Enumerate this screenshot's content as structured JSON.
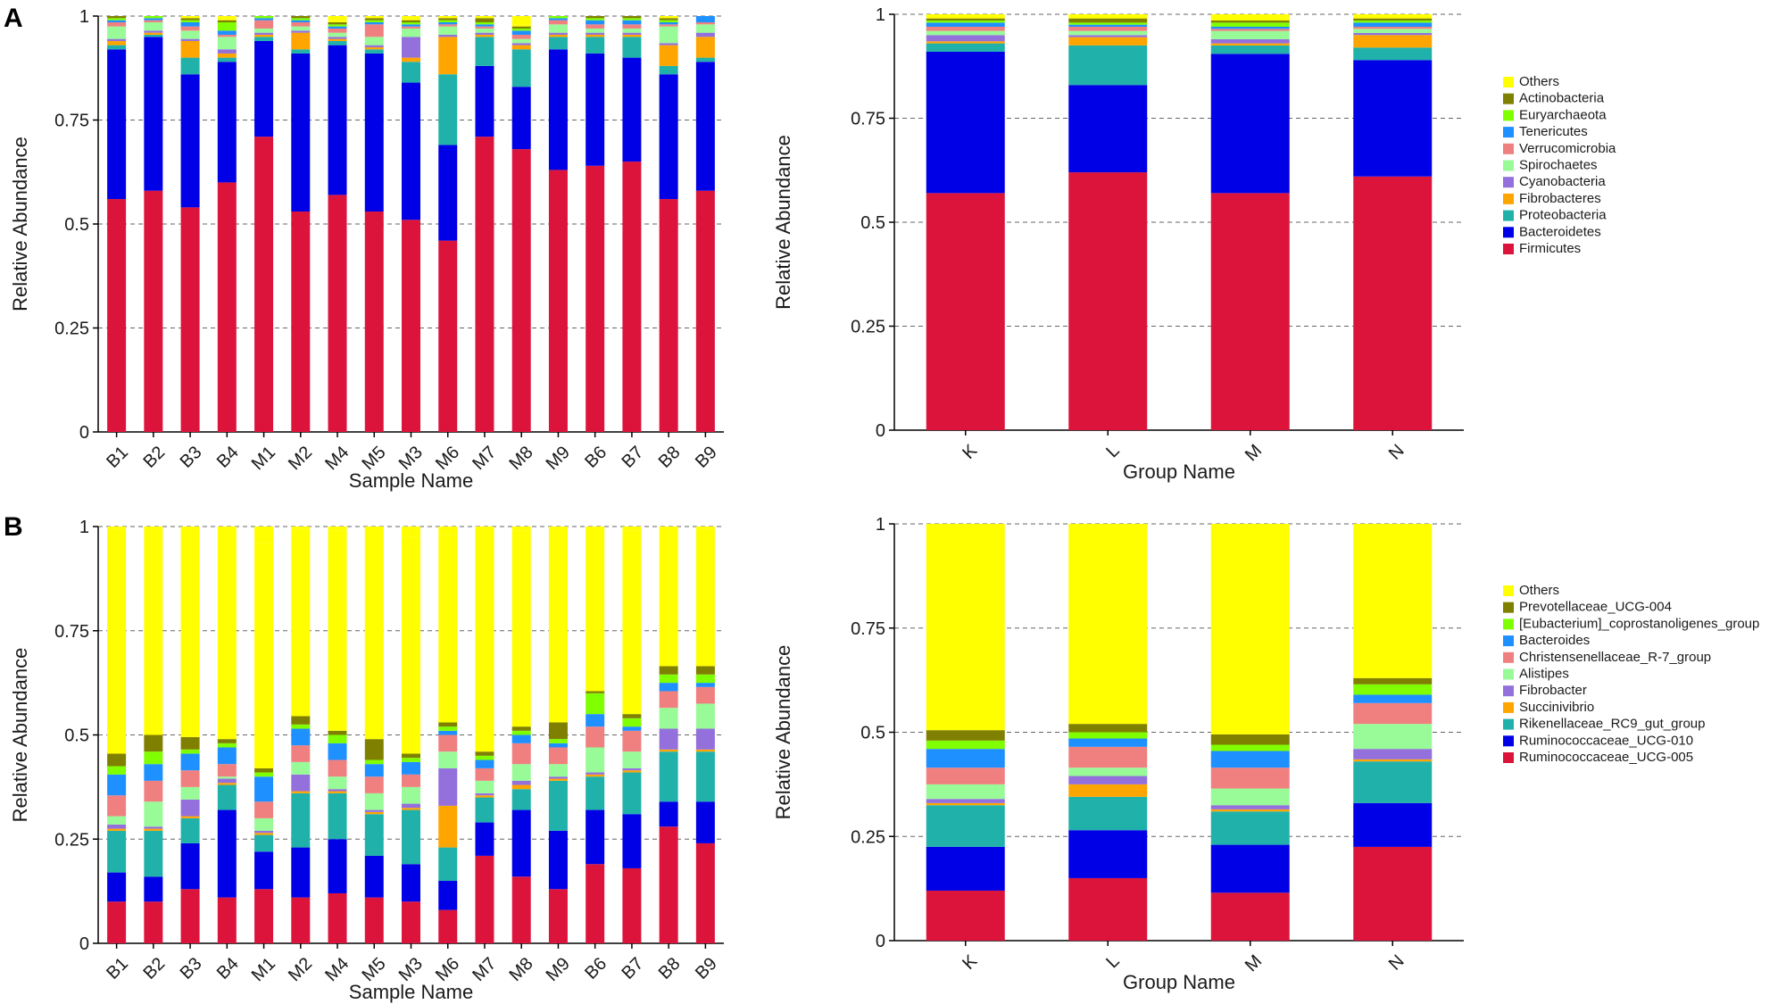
{
  "figure": {
    "panel_labels": [
      "A",
      "B"
    ],
    "ytick_labels": [
      "0",
      "0.25",
      "0.5",
      "0.75",
      "1"
    ]
  },
  "chart_data": [
    {
      "id": "A-samples",
      "type": "bar",
      "stacked": true,
      "title": "",
      "xlabel": "Sample Name",
      "ylabel": "Relative Abundance",
      "ylim": [
        0,
        1
      ],
      "yticks": [
        0,
        0.25,
        0.5,
        0.75,
        1
      ],
      "grid": "dashed horizontal",
      "categories": [
        "B1",
        "B2",
        "B3",
        "B4",
        "M1",
        "M2",
        "M4",
        "M5",
        "M3",
        "M6",
        "M7",
        "M8",
        "M9",
        "B6",
        "B7",
        "B8",
        "B9"
      ],
      "series": [
        {
          "name": "Firmicutes",
          "color": "#dc143c",
          "values": [
            0.56,
            0.58,
            0.54,
            0.6,
            0.71,
            0.53,
            0.57,
            0.53,
            0.51,
            0.46,
            0.71,
            0.68,
            0.63,
            0.64,
            0.65,
            0.56,
            0.58
          ]
        },
        {
          "name": "Bacteroidetes",
          "color": "#0000e6",
          "values": [
            0.36,
            0.37,
            0.32,
            0.29,
            0.23,
            0.38,
            0.36,
            0.38,
            0.33,
            0.23,
            0.17,
            0.15,
            0.29,
            0.27,
            0.25,
            0.3,
            0.31
          ]
        },
        {
          "name": "Proteobacteria",
          "color": "#20b2aa",
          "values": [
            0.01,
            0.005,
            0.04,
            0.01,
            0.01,
            0.01,
            0.01,
            0.01,
            0.05,
            0.17,
            0.07,
            0.09,
            0.03,
            0.04,
            0.05,
            0.02,
            0.01
          ]
        },
        {
          "name": "Fibrobacteres",
          "color": "#ffa500",
          "values": [
            0.01,
            0.005,
            0.04,
            0.01,
            0.005,
            0.04,
            0.005,
            0.005,
            0.01,
            0.09,
            0.005,
            0.01,
            0.005,
            0.005,
            0.005,
            0.05,
            0.05
          ]
        },
        {
          "name": "Cyanobacteria",
          "color": "#9370db",
          "values": [
            0.005,
            0.005,
            0.005,
            0.01,
            0.005,
            0.005,
            0.005,
            0.005,
            0.05,
            0.005,
            0.005,
            0.005,
            0.005,
            0.005,
            0.005,
            0.005,
            0.01
          ]
        },
        {
          "name": "Spirochaetes",
          "color": "#98fb98",
          "values": [
            0.03,
            0.02,
            0.02,
            0.03,
            0.01,
            0.01,
            0.01,
            0.02,
            0.02,
            0.02,
            0.01,
            0.01,
            0.02,
            0.01,
            0.01,
            0.04,
            0.02
          ]
        },
        {
          "name": "Verrucomicrobia",
          "color": "#f08080",
          "values": [
            0.01,
            0.005,
            0.01,
            0.005,
            0.02,
            0.01,
            0.01,
            0.03,
            0.005,
            0.005,
            0.005,
            0.01,
            0.01,
            0.01,
            0.01,
            0.005,
            0.005
          ]
        },
        {
          "name": "Tenericutes",
          "color": "#1e90ff",
          "values": [
            0.005,
            0.005,
            0.01,
            0.01,
            0.005,
            0.005,
            0.005,
            0.005,
            0.005,
            0.005,
            0.005,
            0.01,
            0.005,
            0.01,
            0.01,
            0.005,
            0.02
          ]
        },
        {
          "name": "Euryarchaeota",
          "color": "#7fff00",
          "values": [
            0.005,
            0.005,
            0.005,
            0.02,
            0.005,
            0.005,
            0.005,
            0.005,
            0.005,
            0.005,
            0.005,
            0.005,
            0.005,
            0.005,
            0.005,
            0.005,
            0.005
          ]
        },
        {
          "name": "Actinobacteria",
          "color": "#808000",
          "values": [
            0.005,
            0.005,
            0.005,
            0.005,
            0.005,
            0.005,
            0.005,
            0.005,
            0.005,
            0.005,
            0.01,
            0.005,
            0.005,
            0.005,
            0.005,
            0.005,
            0.005
          ]
        },
        {
          "name": "Others",
          "color": "#ffff00",
          "values": [
            0.005,
            0.005,
            0.005,
            0.005,
            0.005,
            0.005,
            0.005,
            0.005,
            0.005,
            0.005,
            0.005,
            0.005,
            0.005,
            0.005,
            0.005,
            0.005,
            0.005
          ]
        }
      ]
    },
    {
      "id": "A-groups",
      "type": "bar",
      "stacked": true,
      "title": "",
      "xlabel": "Group Name",
      "ylabel": "Relative Abundance",
      "ylim": [
        0,
        1
      ],
      "yticks": [
        0,
        0.25,
        0.5,
        0.75,
        1
      ],
      "grid": "dashed horizontal",
      "legend": "right",
      "categories": [
        "K",
        "L",
        "M",
        "N"
      ],
      "series": [
        {
          "name": "Firmicutes",
          "color": "#dc143c",
          "values": [
            0.57,
            0.62,
            0.57,
            0.61
          ]
        },
        {
          "name": "Bacteroidetes",
          "color": "#0000e6",
          "values": [
            0.34,
            0.21,
            0.335,
            0.28
          ]
        },
        {
          "name": "Proteobacteria",
          "color": "#20b2aa",
          "values": [
            0.02,
            0.095,
            0.02,
            0.03
          ]
        },
        {
          "name": "Fibrobacteres",
          "color": "#ffa500",
          "values": [
            0.005,
            0.02,
            0.005,
            0.03
          ]
        },
        {
          "name": "Cyanobacteria",
          "color": "#9370db",
          "values": [
            0.015,
            0.005,
            0.01,
            0.005
          ]
        },
        {
          "name": "Spirochaetes",
          "color": "#98fb98",
          "values": [
            0.01,
            0.01,
            0.02,
            0.01
          ]
        },
        {
          "name": "Verrucomicrobia",
          "color": "#f08080",
          "values": [
            0.01,
            0.01,
            0.005,
            0.005
          ]
        },
        {
          "name": "Tenericutes",
          "color": "#1e90ff",
          "values": [
            0.01,
            0.005,
            0.005,
            0.01
          ]
        },
        {
          "name": "Euryarchaeota",
          "color": "#7fff00",
          "values": [
            0.005,
            0.005,
            0.01,
            0.005
          ]
        },
        {
          "name": "Actinobacteria",
          "color": "#808000",
          "values": [
            0.005,
            0.01,
            0.005,
            0.005
          ]
        },
        {
          "name": "Others",
          "color": "#ffff00",
          "values": [
            0.01,
            0.01,
            0.015,
            0.01
          ]
        }
      ]
    },
    {
      "id": "B-samples",
      "type": "bar",
      "stacked": true,
      "title": "",
      "xlabel": "Sample Name",
      "ylabel": "Relative Abundance",
      "ylim": [
        0,
        1
      ],
      "yticks": [
        0,
        0.25,
        0.5,
        0.75,
        1
      ],
      "grid": "dashed horizontal",
      "categories": [
        "B1",
        "B2",
        "B3",
        "B4",
        "M1",
        "M2",
        "M4",
        "M5",
        "M3",
        "M6",
        "M7",
        "M8",
        "M9",
        "B6",
        "B7",
        "B8",
        "B9"
      ],
      "series": [
        {
          "name": "Ruminococcaceae_UCG-005",
          "color": "#dc143c",
          "values": [
            0.1,
            0.1,
            0.13,
            0.11,
            0.13,
            0.11,
            0.12,
            0.11,
            0.1,
            0.08,
            0.21,
            0.16,
            0.13,
            0.19,
            0.18,
            0.28,
            0.24
          ]
        },
        {
          "name": "Ruminococcaceae_UCG-010",
          "color": "#0000e6",
          "values": [
            0.07,
            0.06,
            0.11,
            0.21,
            0.09,
            0.12,
            0.13,
            0.1,
            0.09,
            0.07,
            0.08,
            0.16,
            0.14,
            0.13,
            0.13,
            0.06,
            0.1
          ]
        },
        {
          "name": "Rikenellaceae_RC9_gut_group",
          "color": "#20b2aa",
          "values": [
            0.1,
            0.11,
            0.06,
            0.06,
            0.04,
            0.13,
            0.11,
            0.1,
            0.13,
            0.08,
            0.06,
            0.05,
            0.12,
            0.08,
            0.1,
            0.12,
            0.12
          ]
        },
        {
          "name": "Succinivibrio",
          "color": "#ffa500",
          "values": [
            0.005,
            0.005,
            0.005,
            0.005,
            0.005,
            0.005,
            0.005,
            0.005,
            0.005,
            0.1,
            0.005,
            0.01,
            0.005,
            0.005,
            0.005,
            0.005,
            0.005
          ]
        },
        {
          "name": "Fibrobacter",
          "color": "#9370db",
          "values": [
            0.01,
            0.005,
            0.04,
            0.01,
            0.005,
            0.04,
            0.005,
            0.005,
            0.01,
            0.09,
            0.005,
            0.01,
            0.005,
            0.005,
            0.005,
            0.05,
            0.05
          ]
        },
        {
          "name": "Alistipes",
          "color": "#98fb98",
          "values": [
            0.02,
            0.06,
            0.03,
            0.005,
            0.03,
            0.03,
            0.03,
            0.04,
            0.04,
            0.04,
            0.03,
            0.04,
            0.03,
            0.06,
            0.04,
            0.05,
            0.06
          ]
        },
        {
          "name": "Christensenellaceae_R-7_group",
          "color": "#f08080",
          "values": [
            0.05,
            0.05,
            0.04,
            0.03,
            0.04,
            0.04,
            0.04,
            0.04,
            0.03,
            0.04,
            0.03,
            0.05,
            0.04,
            0.05,
            0.05,
            0.04,
            0.04
          ]
        },
        {
          "name": "Bacteroides",
          "color": "#1e90ff",
          "values": [
            0.05,
            0.04,
            0.04,
            0.04,
            0.06,
            0.04,
            0.04,
            0.03,
            0.03,
            0.01,
            0.02,
            0.02,
            0.01,
            0.03,
            0.01,
            0.02,
            0.01
          ]
        },
        {
          "name": "[Eubacterium]_coprostanoligenes_group",
          "color": "#7fff00",
          "values": [
            0.02,
            0.03,
            0.01,
            0.01,
            0.01,
            0.01,
            0.02,
            0.01,
            0.01,
            0.01,
            0.01,
            0.01,
            0.01,
            0.05,
            0.02,
            0.02,
            0.02
          ]
        },
        {
          "name": "Prevotellaceae_UCG-004",
          "color": "#808000",
          "values": [
            0.03,
            0.04,
            0.03,
            0.01,
            0.01,
            0.02,
            0.01,
            0.05,
            0.01,
            0.01,
            0.01,
            0.01,
            0.04,
            0.005,
            0.01,
            0.02,
            0.02
          ]
        },
        {
          "name": "Others",
          "color": "#ffff00",
          "values": [
            0.54,
            0.5,
            0.51,
            0.48,
            0.54,
            0.45,
            0.48,
            0.48,
            0.52,
            0.45,
            0.51,
            0.47,
            0.44,
            0.38,
            0.44,
            0.34,
            0.33
          ]
        }
      ]
    },
    {
      "id": "B-groups",
      "type": "bar",
      "stacked": true,
      "title": "",
      "xlabel": "Group Name",
      "ylabel": "Relative Abundance",
      "ylim": [
        0,
        1
      ],
      "yticks": [
        0,
        0.25,
        0.5,
        0.75,
        1
      ],
      "grid": "dashed horizontal",
      "legend": "right",
      "categories": [
        "K",
        "L",
        "M",
        "N"
      ],
      "series": [
        {
          "name": "Ruminococcaceae_UCG-005",
          "color": "#dc143c",
          "values": [
            0.12,
            0.15,
            0.115,
            0.225
          ]
        },
        {
          "name": "Ruminococcaceae_UCG-010",
          "color": "#0000e6",
          "values": [
            0.105,
            0.115,
            0.115,
            0.105
          ]
        },
        {
          "name": "Rikenellaceae_RC9_gut_group",
          "color": "#20b2aa",
          "values": [
            0.1,
            0.08,
            0.08,
            0.1
          ]
        },
        {
          "name": "Succinivibrio",
          "color": "#ffa500",
          "values": [
            0.005,
            0.03,
            0.005,
            0.005
          ]
        },
        {
          "name": "Fibrobacter",
          "color": "#9370db",
          "values": [
            0.01,
            0.02,
            0.01,
            0.025
          ]
        },
        {
          "name": "Alistipes",
          "color": "#98fb98",
          "values": [
            0.035,
            0.02,
            0.04,
            0.06
          ]
        },
        {
          "name": "Christensenellaceae_R-7_group",
          "color": "#f08080",
          "values": [
            0.04,
            0.05,
            0.05,
            0.05
          ]
        },
        {
          "name": "Bacteroides",
          "color": "#1e90ff",
          "values": [
            0.045,
            0.02,
            0.04,
            0.02
          ]
        },
        {
          "name": "[Eubacterium]_coprostanoligenes_group",
          "color": "#7fff00",
          "values": [
            0.02,
            0.015,
            0.015,
            0.025
          ]
        },
        {
          "name": "Prevotellaceae_UCG-004",
          "color": "#808000",
          "values": [
            0.025,
            0.02,
            0.025,
            0.015
          ]
        },
        {
          "name": "Others",
          "color": "#ffff00",
          "values": [
            0.495,
            0.48,
            0.505,
            0.37
          ]
        }
      ]
    }
  ]
}
